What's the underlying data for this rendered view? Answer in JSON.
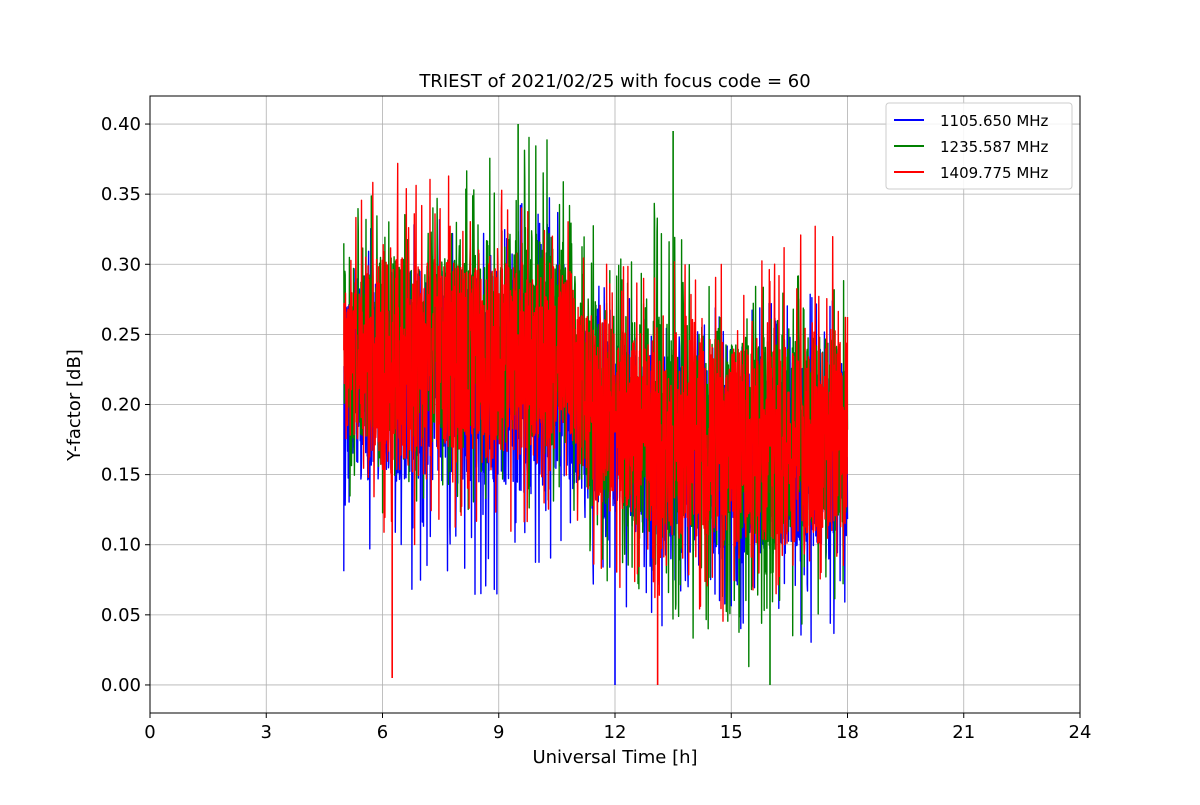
{
  "chart_data": {
    "type": "line",
    "title": "TRIEST of 2021/02/25 with focus code = 60",
    "xlabel": "Universal Time [h]",
    "ylabel": "Y-factor [dB]",
    "xlim": [
      0,
      24
    ],
    "ylim": [
      -0.02,
      0.42
    ],
    "xticks": [
      0,
      3,
      6,
      9,
      12,
      15,
      18,
      21,
      24
    ],
    "xtick_labels": [
      "0",
      "3",
      "6",
      "9",
      "12",
      "15",
      "18",
      "21",
      "24"
    ],
    "yticks": [
      0.0,
      0.05,
      0.1,
      0.15,
      0.2,
      0.25,
      0.3,
      0.35,
      0.4
    ],
    "ytick_labels": [
      "0.00",
      "0.05",
      "0.10",
      "0.15",
      "0.20",
      "0.25",
      "0.30",
      "0.35",
      "0.40"
    ],
    "grid": true,
    "legend_position": "top-right",
    "series": [
      {
        "name": "1105.650 MHz",
        "color": "#0000ff",
        "x": [
          5.0,
          6.0,
          7.0,
          8.0,
          9.0,
          10.0,
          10.8,
          11.0,
          12.0,
          13.0,
          14.0,
          15.0,
          16.0,
          17.0,
          18.0
        ],
        "center": [
          0.21,
          0.22,
          0.22,
          0.22,
          0.22,
          0.21,
          0.22,
          0.2,
          0.18,
          0.17,
          0.16,
          0.16,
          0.16,
          0.16,
          0.16
        ],
        "low": [
          0.08,
          0.07,
          0.06,
          0.06,
          0.06,
          0.07,
          0.1,
          0.05,
          0.04,
          0.03,
          0.02,
          0.03,
          0.04,
          0.03,
          0.02
        ],
        "high": [
          0.31,
          0.34,
          0.34,
          0.34,
          0.34,
          0.35,
          0.36,
          0.3,
          0.28,
          0.28,
          0.27,
          0.27,
          0.28,
          0.28,
          0.28
        ]
      },
      {
        "name": "1235.587 MHz",
        "color": "#008000",
        "x": [
          5.0,
          6.0,
          7.0,
          8.0,
          9.0,
          10.0,
          10.8,
          11.0,
          12.0,
          13.0,
          14.0,
          15.0,
          16.0,
          17.0,
          18.0
        ],
        "center": [
          0.23,
          0.24,
          0.24,
          0.24,
          0.25,
          0.25,
          0.25,
          0.22,
          0.19,
          0.19,
          0.18,
          0.17,
          0.17,
          0.18,
          0.18
        ],
        "low": [
          0.13,
          0.12,
          0.12,
          0.12,
          0.12,
          0.12,
          0.14,
          0.09,
          0.07,
          0.06,
          0.03,
          0.01,
          0.01,
          0.04,
          0.05
        ],
        "high": [
          0.33,
          0.37,
          0.36,
          0.36,
          0.4,
          0.4,
          0.37,
          0.34,
          0.33,
          0.39,
          0.3,
          0.29,
          0.3,
          0.29,
          0.29
        ]
      },
      {
        "name": "1409.775 MHz",
        "color": "#ff0000",
        "x": [
          5.0,
          6.0,
          7.0,
          8.0,
          9.0,
          10.0,
          10.8,
          11.0,
          12.0,
          13.0,
          14.0,
          15.0,
          16.0,
          17.0,
          18.0
        ],
        "center": [
          0.23,
          0.23,
          0.23,
          0.23,
          0.23,
          0.23,
          0.24,
          0.21,
          0.19,
          0.18,
          0.18,
          0.17,
          0.17,
          0.17,
          0.18
        ],
        "low": [
          0.15,
          0.09,
          0.1,
          0.1,
          0.1,
          0.1,
          0.14,
          0.09,
          0.07,
          0.06,
          0.05,
          0.04,
          0.06,
          0.06,
          0.08
        ],
        "high": [
          0.34,
          0.38,
          0.38,
          0.36,
          0.36,
          0.36,
          0.37,
          0.33,
          0.31,
          0.31,
          0.32,
          0.3,
          0.31,
          0.33,
          0.32
        ]
      }
    ],
    "notable_points": [
      {
        "series": "1105.650 MHz",
        "x": 12.0,
        "y": 0.0
      },
      {
        "series": "1235.587 MHz",
        "x": 16.0,
        "y": 0.0
      },
      {
        "series": "1409.775 MHz",
        "x": 6.25,
        "y": 0.005
      },
      {
        "series": "1409.775 MHz",
        "x": 13.1,
        "y": 0.0
      },
      {
        "series": "1235.587 MHz",
        "x": 9.5,
        "y": 0.4
      },
      {
        "series": "1235.587 MHz",
        "x": 13.5,
        "y": 0.395
      }
    ]
  }
}
